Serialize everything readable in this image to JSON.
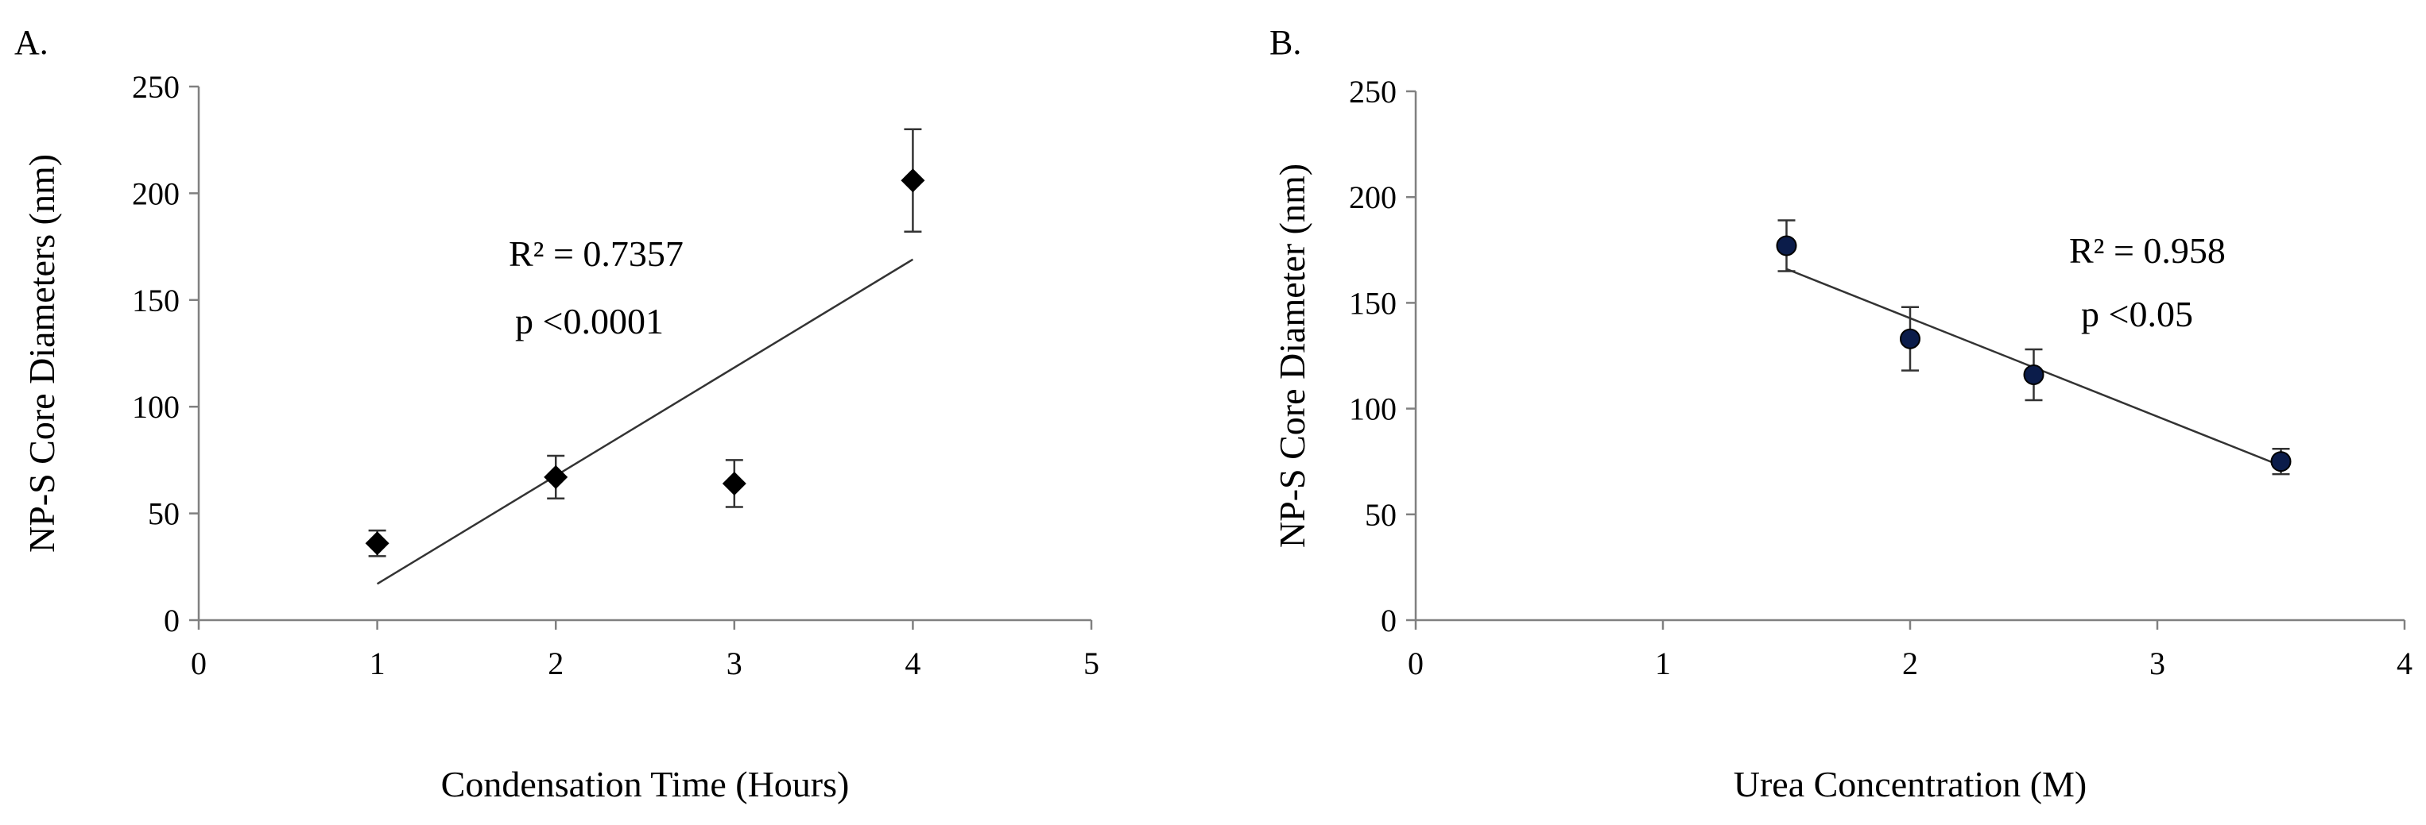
{
  "chart_data": [
    {
      "type": "scatter",
      "panel_label": "A.",
      "xlabel": "Condensation Time (Hours)",
      "ylabel": "NP-S Core Diameters (nm)",
      "xlim": [
        0,
        5
      ],
      "ylim": [
        0,
        250
      ],
      "xticks": [
        0,
        1,
        2,
        3,
        4,
        5
      ],
      "yticks": [
        0,
        50,
        100,
        150,
        200,
        250
      ],
      "marker": "diamond",
      "marker_color": "#000000",
      "grid": false,
      "points": [
        {
          "x": 1,
          "y": 36,
          "err": 6
        },
        {
          "x": 2,
          "y": 67,
          "err": 10
        },
        {
          "x": 3,
          "y": 64,
          "err": 11
        },
        {
          "x": 4,
          "y": 206,
          "err": 24
        }
      ],
      "trendline": {
        "x": [
          1,
          4
        ],
        "y": [
          17,
          169
        ]
      },
      "annotations": [
        "R² = 0.7357",
        "p <0.0001"
      ]
    },
    {
      "type": "scatter",
      "panel_label": "B.",
      "xlabel": "Urea Concentration (M)",
      "ylabel": "NP-S Core Diameter (nm)",
      "xlim": [
        0,
        4
      ],
      "ylim": [
        0,
        250
      ],
      "xticks": [
        0,
        1,
        2,
        3,
        4
      ],
      "yticks": [
        0,
        50,
        100,
        150,
        200,
        250
      ],
      "marker": "circle",
      "marker_color": "#0b1c4a",
      "grid": false,
      "points": [
        {
          "x": 1.5,
          "y": 177,
          "err": 12
        },
        {
          "x": 2,
          "y": 133,
          "err": 15
        },
        {
          "x": 2.5,
          "y": 116,
          "err": 12
        },
        {
          "x": 3.5,
          "y": 75,
          "err": 6
        }
      ],
      "trendline": {
        "x": [
          1.5,
          3.5
        ],
        "y": [
          166,
          73
        ]
      },
      "annotations": [
        "R² = 0.958",
        "p <0.05"
      ]
    }
  ]
}
